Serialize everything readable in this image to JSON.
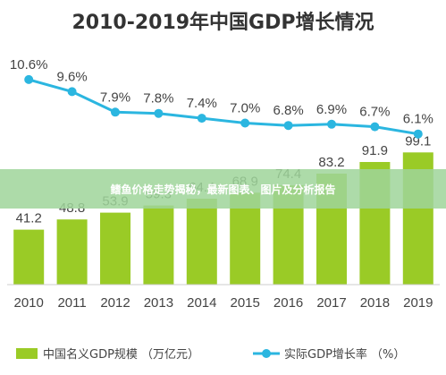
{
  "chart_data": {
    "type": "bar",
    "title": "2010-2019年中国GDP增长情况",
    "categories": [
      "2010",
      "2011",
      "2012",
      "2013",
      "2014",
      "2015",
      "2016",
      "2017",
      "2018",
      "2019"
    ],
    "series": [
      {
        "name": "中国名义GDP规模 （万亿元）",
        "type": "bar",
        "values": [
          41.2,
          48.8,
          53.9,
          59.3,
          64.4,
          68.9,
          74.4,
          83.2,
          91.9,
          99.1
        ],
        "labels": [
          "41.2",
          "48.8",
          "53.9",
          "59.3",
          "64.4",
          "68.9",
          "74.4",
          "83.2",
          "91.9",
          "99.1"
        ],
        "color": "#9acb26"
      },
      {
        "name": "实际GDP增长率 （%）",
        "type": "line",
        "values": [
          10.6,
          9.6,
          7.9,
          7.8,
          7.4,
          7.0,
          6.8,
          6.9,
          6.7,
          6.1
        ],
        "labels": [
          "10.6%",
          "9.6%",
          "7.9%",
          "7.8%",
          "7.4%",
          "7.0%",
          "6.8%",
          "6.9%",
          "6.7%",
          "6.1%"
        ],
        "color": "#2bb6e0"
      }
    ],
    "bar_ylim": [
      0,
      110
    ],
    "line_ylim": [
      0,
      12
    ],
    "grid": false,
    "legend_position": "bottom"
  },
  "overlay": {
    "text": "鳍鱼价格走势揭秘，最新图表、图片及分析报告",
    "color": "#9fd59a"
  }
}
